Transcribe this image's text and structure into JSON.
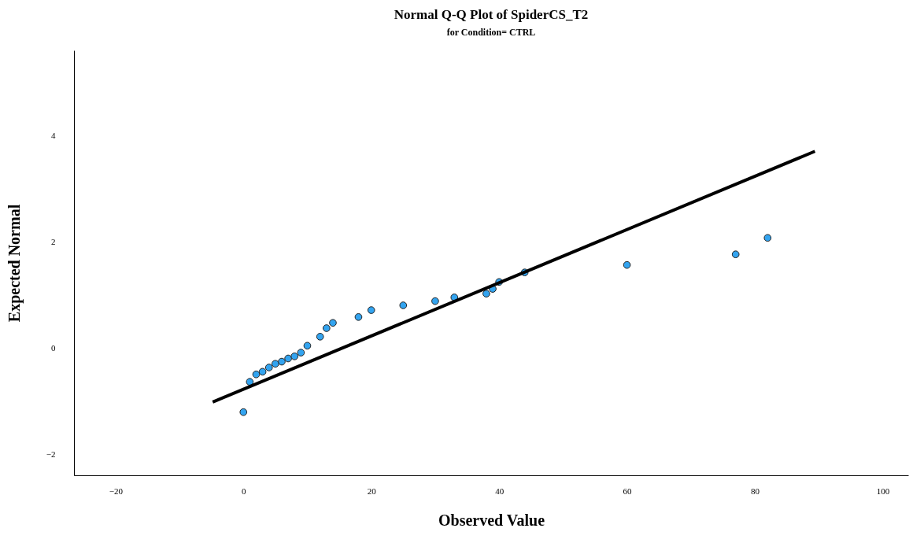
{
  "chart_data": {
    "type": "scatter",
    "title": "Normal Q-Q Plot of SpiderCS_T2",
    "subtitle": "for Condition= CTRL",
    "xlabel": "Observed Value",
    "ylabel": "Expected Normal",
    "xlim": [
      -26.5,
      104
    ],
    "ylim": [
      -2.4,
      5.6
    ],
    "xticks": [
      -20,
      0,
      20,
      40,
      60,
      80,
      100
    ],
    "yticks": [
      -2,
      0,
      2,
      4
    ],
    "grid": false,
    "series": [
      {
        "marker": "circle",
        "color": "#33a4f0",
        "x": [
          0,
          1,
          2,
          3,
          4,
          5,
          6,
          7,
          8,
          9,
          10,
          12,
          13,
          14,
          18,
          20,
          25,
          30,
          33,
          38,
          39,
          40,
          44,
          60,
          77,
          82
        ],
        "values": [
          -1.21,
          -0.64,
          -0.5,
          -0.45,
          -0.37,
          -0.3,
          -0.26,
          -0.2,
          -0.16,
          -0.09,
          0.04,
          0.21,
          0.37,
          0.47,
          0.58,
          0.71,
          0.8,
          0.88,
          0.95,
          1.02,
          1.11,
          1.24,
          1.42,
          1.56,
          1.76,
          2.07
        ]
      },
      {
        "type": "line",
        "color": "#000000",
        "line_style": "solid",
        "x": [
          -4.8,
          89.4
        ],
        "values": [
          -1.02,
          3.7
        ]
      }
    ]
  }
}
